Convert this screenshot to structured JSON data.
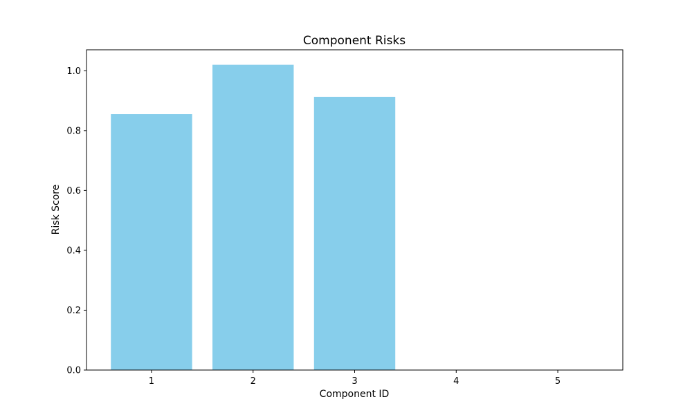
{
  "chart_data": {
    "type": "bar",
    "title": "Component Risks",
    "xlabel": "Component ID",
    "ylabel": "Risk Score",
    "categories": [
      "1",
      "2",
      "3",
      "4",
      "5"
    ],
    "values": [
      0.855,
      1.02,
      0.913,
      0,
      0
    ],
    "ylim": [
      0,
      1.07
    ],
    "yticks": [
      "0.0",
      "0.2",
      "0.4",
      "0.6",
      "0.8",
      "1.0"
    ],
    "bar_color": "#87CEEB",
    "grid": false,
    "legend": "none"
  }
}
